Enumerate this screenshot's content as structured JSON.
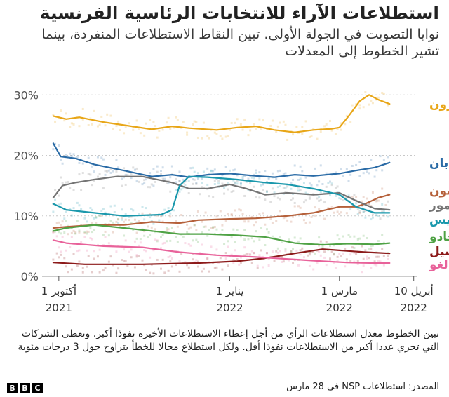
{
  "header": {
    "title": "استطلاعات الآراء للانتخابات الرئاسية الفرنسية",
    "subtitle": "نوايا التصويت في الجولة الأولى. تبين النقاط الاستطلاعات المنفردة، بينما تشير الخطوط إلى المعدلات"
  },
  "footnote": "تبين الخطوط معدل استطلاعات الرأي من أجل إعطاء الاستطلاعات الأخيرة نفوذا أكبر. وتعطى الشركات التي تجري عددا أكبر من الاستطلاعات نفوذا أقل. ولكل استطلاع مجالا للخطأ يتراوح حول 3 درجات مئوية",
  "source": "المصدر: استطلاعات NSP في 28 مارس",
  "brand": {
    "letters": [
      "B",
      "B",
      "C"
    ]
  },
  "chart_data": {
    "type": "line",
    "x_unit": "date",
    "y_unit": "percent",
    "ylim": [
      0,
      32
    ],
    "xlim": [
      "2021-09-22",
      "2022-04-12"
    ],
    "y_ticks": [
      {
        "value": 0,
        "label": "0%"
      },
      {
        "value": 10,
        "label": "10%"
      },
      {
        "value": 20,
        "label": "20%"
      },
      {
        "value": 30,
        "label": "30%"
      }
    ],
    "x_ticks": [
      {
        "date": "2021-10-01",
        "line1": "1 أكتوبر",
        "line2": "2021"
      },
      {
        "date": "2022-01-01",
        "line1": "1 يناير",
        "line2": "2022"
      },
      {
        "date": "2022-03-01",
        "line1": "1 مارس",
        "line2": "2022"
      },
      {
        "date": "2022-04-10",
        "line1": "10 أبريل",
        "line2": "2022"
      }
    ],
    "grid": "horizontal-dotted",
    "legend": "direct labels at right end of lines",
    "series": [
      {
        "name": "ماكرون",
        "color": "#e8a617",
        "points": [
          [
            "2021-09-28",
            26.5
          ],
          [
            "2021-10-05",
            26
          ],
          [
            "2021-10-12",
            26.3
          ],
          [
            "2021-10-25",
            25.5
          ],
          [
            "2021-11-05",
            25
          ],
          [
            "2021-11-20",
            24.3
          ],
          [
            "2021-12-01",
            24.8
          ],
          [
            "2021-12-10",
            24.5
          ],
          [
            "2021-12-25",
            24.2
          ],
          [
            "2022-01-05",
            24.6
          ],
          [
            "2022-01-15",
            24.8
          ],
          [
            "2022-01-25",
            24.2
          ],
          [
            "2022-02-05",
            23.8
          ],
          [
            "2022-02-15",
            24.2
          ],
          [
            "2022-02-25",
            24.4
          ],
          [
            "2022-03-01",
            24.6
          ],
          [
            "2022-03-06",
            26.5
          ],
          [
            "2022-03-12",
            29
          ],
          [
            "2022-03-17",
            30
          ],
          [
            "2022-03-22",
            29.2
          ],
          [
            "2022-03-28",
            28.5
          ]
        ]
      },
      {
        "name": "لو بان",
        "color": "#2a6ba6",
        "points": [
          [
            "2021-09-28",
            22
          ],
          [
            "2021-10-02",
            19.8
          ],
          [
            "2021-10-10",
            19.5
          ],
          [
            "2021-10-20",
            18.5
          ],
          [
            "2021-11-05",
            17.5
          ],
          [
            "2021-11-20",
            16.5
          ],
          [
            "2021-12-01",
            16.8
          ],
          [
            "2021-12-10",
            16.4
          ],
          [
            "2021-12-20",
            16.8
          ],
          [
            "2022-01-01",
            17
          ],
          [
            "2022-01-15",
            16.6
          ],
          [
            "2022-01-25",
            16.4
          ],
          [
            "2022-02-05",
            16.8
          ],
          [
            "2022-02-15",
            16.6
          ],
          [
            "2022-03-01",
            17
          ],
          [
            "2022-03-10",
            17.5
          ],
          [
            "2022-03-20",
            18
          ],
          [
            "2022-03-28",
            18.8
          ]
        ]
      },
      {
        "name": "ميلينشون",
        "color": "#b5603a",
        "points": [
          [
            "2021-09-28",
            8
          ],
          [
            "2021-10-05",
            8.2
          ],
          [
            "2021-10-20",
            8.5
          ],
          [
            "2021-11-05",
            8.5
          ],
          [
            "2021-11-20",
            9
          ],
          [
            "2021-12-05",
            8.8
          ],
          [
            "2021-12-15",
            9.3
          ],
          [
            "2022-01-01",
            9.5
          ],
          [
            "2022-01-15",
            9.6
          ],
          [
            "2022-02-01",
            10
          ],
          [
            "2022-02-15",
            10.5
          ],
          [
            "2022-03-01",
            11.5
          ],
          [
            "2022-03-10",
            11.5
          ],
          [
            "2022-03-15",
            12
          ],
          [
            "2022-03-22",
            13
          ],
          [
            "2022-03-28",
            13.5
          ]
        ]
      },
      {
        "name": "زمور",
        "color": "#747474",
        "points": [
          [
            "2021-09-28",
            13
          ],
          [
            "2021-10-03",
            15
          ],
          [
            "2021-10-10",
            15.5
          ],
          [
            "2021-10-20",
            16
          ],
          [
            "2021-11-01",
            16.5
          ],
          [
            "2021-11-15",
            16.5
          ],
          [
            "2021-12-01",
            15.5
          ],
          [
            "2021-12-10",
            14.5
          ],
          [
            "2021-12-20",
            14.5
          ],
          [
            "2022-01-01",
            15.2
          ],
          [
            "2022-01-10",
            14.5
          ],
          [
            "2022-01-20",
            13.5
          ],
          [
            "2022-02-01",
            13.8
          ],
          [
            "2022-02-15",
            13.5
          ],
          [
            "2022-03-01",
            13.8
          ],
          [
            "2022-03-10",
            12.5
          ],
          [
            "2022-03-20",
            11.2
          ],
          [
            "2022-03-28",
            11
          ]
        ]
      },
      {
        "name": "بيكريس",
        "color": "#1a98ac",
        "points": [
          [
            "2021-09-28",
            12
          ],
          [
            "2021-10-05",
            11
          ],
          [
            "2021-10-20",
            10.5
          ],
          [
            "2021-11-05",
            10
          ],
          [
            "2021-11-25",
            10.2
          ],
          [
            "2021-12-01",
            11
          ],
          [
            "2021-12-05",
            15
          ],
          [
            "2021-12-10",
            16.5
          ],
          [
            "2021-12-20",
            16.4
          ],
          [
            "2022-01-05",
            16
          ],
          [
            "2022-01-20",
            15.5
          ],
          [
            "2022-02-01",
            15.2
          ],
          [
            "2022-02-15",
            14.5
          ],
          [
            "2022-03-01",
            13.5
          ],
          [
            "2022-03-10",
            11.5
          ],
          [
            "2022-03-20",
            10.5
          ],
          [
            "2022-03-28",
            10.5
          ]
        ]
      },
      {
        "name": "جادو",
        "color": "#4fa245",
        "points": [
          [
            "2021-09-28",
            7.5
          ],
          [
            "2021-10-05",
            8
          ],
          [
            "2021-10-20",
            8.5
          ],
          [
            "2021-11-05",
            8
          ],
          [
            "2021-11-20",
            7.5
          ],
          [
            "2021-12-05",
            7
          ],
          [
            "2021-12-20",
            7
          ],
          [
            "2022-01-05",
            6.8
          ],
          [
            "2022-01-20",
            6.5
          ],
          [
            "2022-02-05",
            5.5
          ],
          [
            "2022-02-20",
            5.2
          ],
          [
            "2022-03-05",
            5.4
          ],
          [
            "2022-03-20",
            5.3
          ],
          [
            "2022-03-28",
            5.5
          ]
        ]
      },
      {
        "name": "روسيل",
        "color": "#8c1a1a",
        "points": [
          [
            "2021-09-28",
            2.3
          ],
          [
            "2021-10-15",
            2
          ],
          [
            "2021-11-15",
            2
          ],
          [
            "2021-12-15",
            2.2
          ],
          [
            "2022-01-05",
            2.5
          ],
          [
            "2022-01-20",
            3
          ],
          [
            "2022-02-05",
            3.8
          ],
          [
            "2022-02-20",
            4.5
          ],
          [
            "2022-03-01",
            4.3
          ],
          [
            "2022-03-15",
            4
          ],
          [
            "2022-03-28",
            3.8
          ]
        ]
      },
      {
        "name": "هيدالغو",
        "color": "#e8629a",
        "points": [
          [
            "2021-09-28",
            6
          ],
          [
            "2021-10-05",
            5.5
          ],
          [
            "2021-10-25",
            5
          ],
          [
            "2021-11-15",
            4.8
          ],
          [
            "2021-12-05",
            4
          ],
          [
            "2021-12-25",
            3.5
          ],
          [
            "2022-01-15",
            3.2
          ],
          [
            "2022-02-05",
            2.8
          ],
          [
            "2022-02-20",
            2.5
          ],
          [
            "2022-03-05",
            2.3
          ],
          [
            "2022-03-20",
            2.2
          ],
          [
            "2022-03-28",
            2.2
          ]
        ]
      }
    ]
  }
}
